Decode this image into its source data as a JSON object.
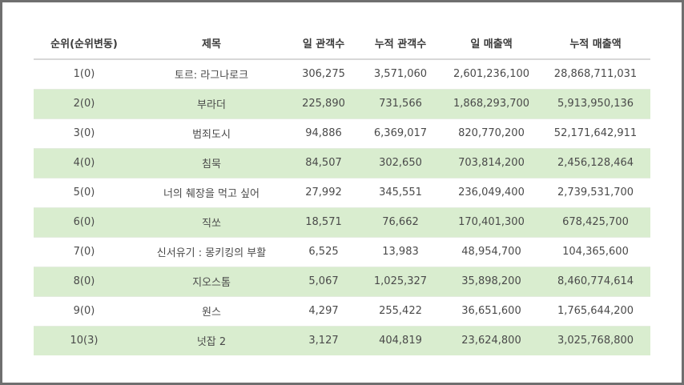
{
  "table": {
    "headers": [
      "순위(순위변동)",
      "제목",
      "일 관객수",
      "누적 관객수",
      "일 매출액",
      "누적 매출액"
    ],
    "rows": [
      [
        "1(0)",
        "토르: 라그나로크",
        "306,275",
        "3,571,060",
        "2,601,236,100",
        "28,868,711,031"
      ],
      [
        "2(0)",
        "부라더",
        "225,890",
        "731,566",
        "1,868,293,700",
        "5,913,950,136"
      ],
      [
        "3(0)",
        "범죄도시",
        "94,886",
        "6,369,017",
        "820,770,200",
        "52,171,642,911"
      ],
      [
        "4(0)",
        "침묵",
        "84,507",
        "302,650",
        "703,814,200",
        "2,456,128,464"
      ],
      [
        "5(0)",
        "너의 췌장을 먹고 싶어",
        "27,992",
        "345,551",
        "236,049,400",
        "2,739,531,700"
      ],
      [
        "6(0)",
        "직쏘",
        "18,571",
        "76,662",
        "170,401,300",
        "678,425,700"
      ],
      [
        "7(0)",
        "신서유기 : 몽키킹의 부활",
        "6,525",
        "13,983",
        "48,954,700",
        "104,365,600"
      ],
      [
        "8(0)",
        "지오스톰",
        "5,067",
        "1,025,327",
        "35,898,200",
        "8,460,774,614"
      ],
      [
        "9(0)",
        "원스",
        "4,297",
        "255,422",
        "36,651,600",
        "1,765,644,200"
      ],
      [
        "10(3)",
        "넛잡 2",
        "3,127",
        "404,819",
        "23,624,800",
        "3,025,768,800"
      ]
    ]
  },
  "colors": {
    "alt_row": "#d9edcf",
    "border": "#6f6f6f",
    "header_text": "#3a3a3a",
    "cell_text": "#4a4a4a"
  }
}
